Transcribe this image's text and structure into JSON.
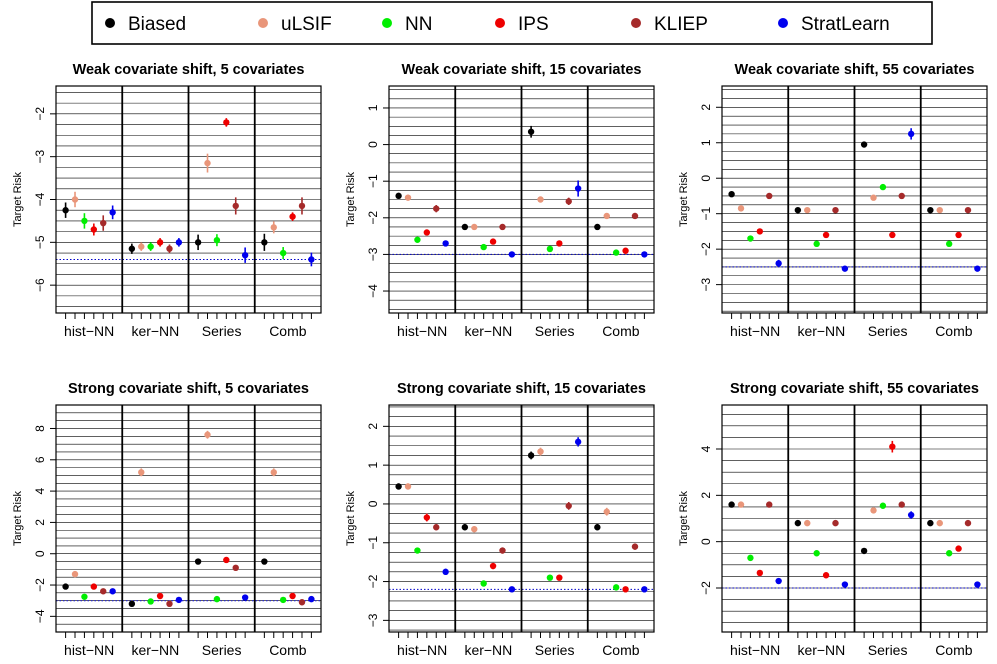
{
  "legend": {
    "entries": [
      {
        "label": "Biased",
        "color": "#000000"
      },
      {
        "label": "uLSIF",
        "color": "#E9967A"
      },
      {
        "label": "NN",
        "color": "#00EE00"
      },
      {
        "label": "IPS",
        "color": "#EE0000"
      },
      {
        "label": "KLIEP",
        "color": "#A52A2A"
      },
      {
        "label": "StratLearn",
        "color": "#0000EE"
      }
    ]
  },
  "chart_data": [
    {
      "type": "scatter",
      "title": "Weak covariate shift, 5 covariates",
      "ylabel": "Target Risk",
      "xlabel": "",
      "groups": [
        "hist−NN",
        "ker−NN",
        "Series",
        "Comb"
      ],
      "ylim": [
        -6.65,
        -1.35
      ],
      "yticks": [
        -6,
        -5,
        -4,
        -3,
        -2
      ],
      "ytick_labels": [
        "−6",
        "−5",
        "−4",
        "−3",
        "−2"
      ],
      "grid_step": 0.25,
      "reference_line": -5.4,
      "series": [
        {
          "name": "Biased",
          "values": [
            -4.25,
            -5.15,
            -5.0,
            -5.0
          ],
          "err": [
            0.18,
            0.12,
            0.18,
            0.2
          ]
        },
        {
          "name": "uLSIF",
          "values": [
            -4.0,
            -5.1,
            -3.15,
            -4.65
          ],
          "err": [
            0.18,
            0.1,
            0.22,
            0.14
          ]
        },
        {
          "name": "NN",
          "values": [
            -4.5,
            -5.1,
            -4.95,
            -5.25
          ],
          "err": [
            0.18,
            0.1,
            0.14,
            0.14
          ]
        },
        {
          "name": "IPS",
          "values": [
            -4.7,
            -5.0,
            -2.2,
            -4.4
          ],
          "err": [
            0.14,
            0.1,
            0.1,
            0.1
          ]
        },
        {
          "name": "KLIEP",
          "values": [
            -4.55,
            -5.15,
            -4.15,
            -4.15
          ],
          "err": [
            0.18,
            0.1,
            0.2,
            0.2
          ]
        },
        {
          "name": "StratLearn",
          "values": [
            -4.3,
            -5.0,
            -5.3,
            -5.4
          ],
          "err": [
            0.16,
            0.1,
            0.18,
            0.16
          ]
        }
      ]
    },
    {
      "type": "scatter",
      "title": "Weak covariate shift, 15 covariates",
      "ylabel": "Target Risk",
      "xlabel": "",
      "groups": [
        "hist−NN",
        "ker−NN",
        "Series",
        "Comb"
      ],
      "ylim": [
        -4.6,
        1.6
      ],
      "yticks": [
        -4,
        -3,
        -2,
        -1,
        0,
        1
      ],
      "ytick_labels": [
        "−4",
        "−3",
        "−2",
        "−1",
        "0",
        "1"
      ],
      "grid_step": 0.25,
      "reference_line": -3.0,
      "series": [
        {
          "name": "Biased",
          "values": [
            -1.4,
            -2.25,
            0.35,
            -2.25
          ],
          "err": [
            0.08,
            0.08,
            0.16,
            0.08
          ]
        },
        {
          "name": "uLSIF",
          "values": [
            -1.45,
            -2.25,
            -1.5,
            -1.95
          ],
          "err": [
            0.08,
            0.06,
            0.06,
            0.08
          ]
        },
        {
          "name": "NN",
          "values": [
            -2.6,
            -2.8,
            -2.85,
            -2.95
          ],
          "err": [
            0.06,
            0.06,
            0.06,
            0.06
          ]
        },
        {
          "name": "IPS",
          "values": [
            -2.4,
            -2.65,
            -2.7,
            -2.9
          ],
          "err": [
            0.08,
            0.06,
            0.06,
            0.06
          ]
        },
        {
          "name": "KLIEP",
          "values": [
            -1.75,
            -2.25,
            -1.55,
            -1.95
          ],
          "err": [
            0.1,
            0.06,
            0.1,
            0.08
          ]
        },
        {
          "name": "StratLearn",
          "values": [
            -2.7,
            -3.0,
            -1.2,
            -3.0
          ],
          "err": [
            0.08,
            0.06,
            0.22,
            0.06
          ]
        }
      ]
    },
    {
      "type": "scatter",
      "title": "Weak covariate shift, 55 covariates",
      "ylabel": "Target Risk",
      "xlabel": "",
      "groups": [
        "hist−NN",
        "ker−NN",
        "Series",
        "Comb"
      ],
      "ylim": [
        -3.8,
        2.6
      ],
      "yticks": [
        -3,
        -2,
        -1,
        0,
        1,
        2
      ],
      "ytick_labels": [
        "−3",
        "−2",
        "−1",
        "0",
        "1",
        "2"
      ],
      "grid_step": 0.25,
      "reference_line": -2.5,
      "series": [
        {
          "name": "Biased",
          "values": [
            -0.45,
            -0.9,
            0.95,
            -0.9
          ],
          "err": [
            0.08,
            0.06,
            0.08,
            0.06
          ]
        },
        {
          "name": "uLSIF",
          "values": [
            -0.85,
            -0.9,
            -0.55,
            -0.9
          ],
          "err": [
            0.06,
            0.06,
            0.06,
            0.06
          ]
        },
        {
          "name": "NN",
          "values": [
            -1.7,
            -1.85,
            -0.25,
            -1.85
          ],
          "err": [
            0.06,
            0.06,
            0.06,
            0.06
          ]
        },
        {
          "name": "IPS",
          "values": [
            -1.5,
            -1.6,
            -1.6,
            -1.6
          ],
          "err": [
            0.06,
            0.06,
            0.06,
            0.06
          ]
        },
        {
          "name": "KLIEP",
          "values": [
            -0.5,
            -0.9,
            -0.5,
            -0.9
          ],
          "err": [
            0.06,
            0.06,
            0.06,
            0.06
          ]
        },
        {
          "name": "StratLearn",
          "values": [
            -2.4,
            -2.55,
            1.25,
            -2.55
          ],
          "err": [
            0.1,
            0.06,
            0.16,
            0.06
          ]
        }
      ]
    },
    {
      "type": "scatter",
      "title": "Strong covariate shift, 5 covariates",
      "ylabel": "Target Risk",
      "xlabel": "",
      "groups": [
        "hist−NN",
        "ker−NN",
        "Series",
        "Comb"
      ],
      "ylim": [
        -5.0,
        9.5
      ],
      "yticks": [
        -4,
        -2,
        0,
        2,
        4,
        6,
        8
      ],
      "ytick_labels": [
        "−4",
        "−2",
        "0",
        "2",
        "4",
        "6",
        "8"
      ],
      "grid_step": 0.5,
      "reference_line": -3.0,
      "series": [
        {
          "name": "Biased",
          "values": [
            -2.1,
            -3.2,
            -0.5,
            -0.5
          ],
          "err": [
            0.12,
            0.12,
            0.15,
            0.12
          ]
        },
        {
          "name": "uLSIF",
          "values": [
            -1.3,
            5.2,
            7.6,
            5.2
          ],
          "err": [
            0.18,
            0.25,
            0.25,
            0.25
          ]
        },
        {
          "name": "NN",
          "values": [
            -2.75,
            -3.05,
            -2.9,
            -2.95
          ],
          "err": [
            0.1,
            0.08,
            0.08,
            0.08
          ]
        },
        {
          "name": "IPS",
          "values": [
            -2.1,
            -2.7,
            -0.4,
            -2.7
          ],
          "err": [
            0.1,
            0.08,
            0.08,
            0.08
          ]
        },
        {
          "name": "KLIEP",
          "values": [
            -2.4,
            -3.2,
            -0.9,
            -3.1
          ],
          "err": [
            0.1,
            0.08,
            0.12,
            0.08
          ]
        },
        {
          "name": "StratLearn",
          "values": [
            -2.4,
            -2.95,
            -2.8,
            -2.9
          ],
          "err": [
            0.1,
            0.08,
            0.08,
            0.08
          ]
        }
      ]
    },
    {
      "type": "scatter",
      "title": "Strong covariate shift, 15 covariates",
      "ylabel": "Target Risk",
      "xlabel": "",
      "groups": [
        "hist−NN",
        "ker−NN",
        "Series",
        "Comb"
      ],
      "ylim": [
        -3.3,
        2.55
      ],
      "yticks": [
        -3,
        -2,
        -1,
        0,
        1,
        2
      ],
      "ytick_labels": [
        "−3",
        "−2",
        "−1",
        "0",
        "1",
        "2"
      ],
      "grid_step": 0.25,
      "reference_line": -2.2,
      "series": [
        {
          "name": "Biased",
          "values": [
            0.45,
            -0.6,
            1.25,
            -0.6
          ],
          "err": [
            0.08,
            0.08,
            0.1,
            0.08
          ]
        },
        {
          "name": "uLSIF",
          "values": [
            0.45,
            -0.65,
            1.35,
            -0.2
          ],
          "err": [
            0.08,
            0.08,
            0.1,
            0.1
          ]
        },
        {
          "name": "NN",
          "values": [
            -1.2,
            -2.05,
            -1.9,
            -2.15
          ],
          "err": [
            0.06,
            0.06,
            0.06,
            0.06
          ]
        },
        {
          "name": "IPS",
          "values": [
            -0.35,
            -1.6,
            -1.9,
            -2.2
          ],
          "err": [
            0.1,
            0.08,
            0.06,
            0.06
          ]
        },
        {
          "name": "KLIEP",
          "values": [
            -0.6,
            -1.2,
            -0.05,
            -1.1
          ],
          "err": [
            0.08,
            0.08,
            0.1,
            0.08
          ]
        },
        {
          "name": "StratLearn",
          "values": [
            -1.75,
            -2.2,
            1.6,
            -2.2
          ],
          "err": [
            0.08,
            0.06,
            0.12,
            0.06
          ]
        }
      ]
    },
    {
      "type": "scatter",
      "title": "Strong covariate shift, 55 covariates",
      "ylabel": "Target Risk",
      "xlabel": "",
      "groups": [
        "hist−NN",
        "ker−NN",
        "Series",
        "Comb"
      ],
      "ylim": [
        -3.9,
        5.9
      ],
      "yticks": [
        -2,
        0,
        2,
        4
      ],
      "ytick_labels": [
        "−2",
        "0",
        "2",
        "4"
      ],
      "grid_step": 0.5,
      "reference_line": -2.0,
      "series": [
        {
          "name": "Biased",
          "values": [
            1.6,
            0.8,
            -0.4,
            0.8
          ],
          "err": [
            0.08,
            0.08,
            0.08,
            0.08
          ]
        },
        {
          "name": "uLSIF",
          "values": [
            1.6,
            0.8,
            1.35,
            0.8
          ],
          "err": [
            0.08,
            0.08,
            0.1,
            0.08
          ]
        },
        {
          "name": "NN",
          "values": [
            -0.7,
            -0.5,
            1.55,
            -0.5
          ],
          "err": [
            0.08,
            0.06,
            0.08,
            0.06
          ]
        },
        {
          "name": "IPS",
          "values": [
            -1.35,
            -1.45,
            4.1,
            -0.3
          ],
          "err": [
            0.08,
            0.06,
            0.25,
            0.12
          ]
        },
        {
          "name": "KLIEP",
          "values": [
            1.6,
            0.8,
            1.6,
            0.8
          ],
          "err": [
            0.08,
            0.08,
            0.1,
            0.08
          ]
        },
        {
          "name": "StratLearn",
          "values": [
            -1.7,
            -1.85,
            1.15,
            -1.85
          ],
          "err": [
            0.08,
            0.06,
            0.16,
            0.06
          ]
        }
      ]
    }
  ]
}
